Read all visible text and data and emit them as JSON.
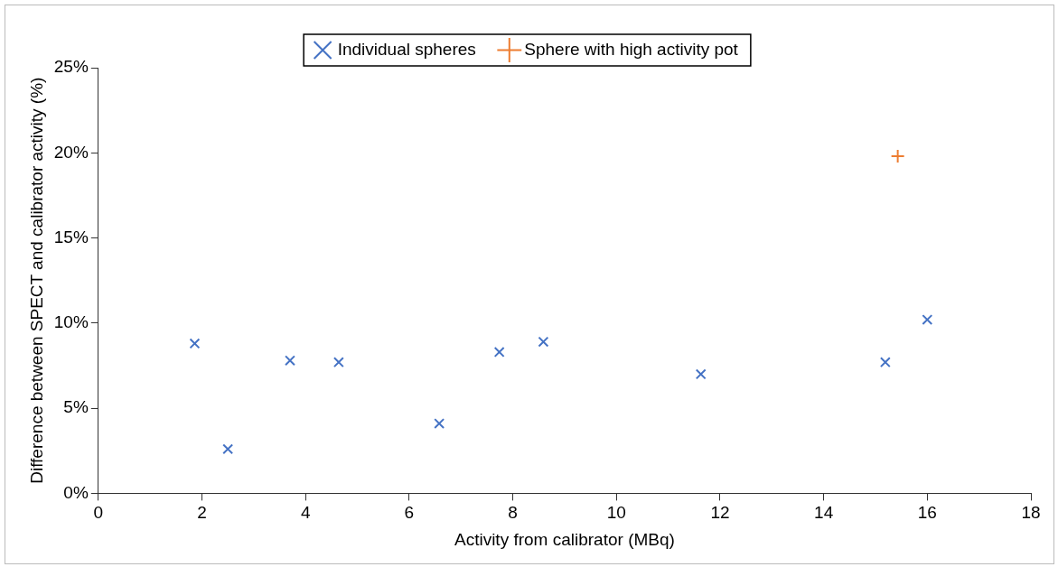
{
  "chart_data": {
    "type": "scatter",
    "xlabel": "Activity from calibrator (MBq)",
    "ylabel": "Difference between SPECT and calibrator activity (%)",
    "series": [
      {
        "name": "Individual spheres",
        "color": "#4472c4",
        "marker": "cross",
        "x": [
          1.86,
          2.5,
          3.7,
          4.64,
          6.58,
          7.74,
          8.59,
          11.63,
          15.19,
          16.0
        ],
        "values": [
          8.8,
          2.6,
          7.8,
          7.7,
          4.1,
          8.3,
          8.9,
          7.0,
          7.7,
          10.2
        ]
      },
      {
        "name": "Sphere with high activity pot",
        "color": "#ed7d31",
        "marker": "plus",
        "x": [
          15.43
        ],
        "values": [
          19.8
        ]
      }
    ],
    "xlim": [
      0,
      18
    ],
    "xticks": [
      0,
      2,
      4,
      6,
      8,
      10,
      12,
      14,
      16,
      18
    ],
    "ylim": [
      0,
      25
    ],
    "yticks": [
      {
        "value": 0,
        "label": "0%"
      },
      {
        "value": 5,
        "label": "5%"
      },
      {
        "value": 10,
        "label": "10%"
      },
      {
        "value": 15,
        "label": "15%"
      },
      {
        "value": 20,
        "label": "20%"
      },
      {
        "value": 25,
        "label": "25%"
      }
    ],
    "grid": false,
    "legend": "top"
  }
}
